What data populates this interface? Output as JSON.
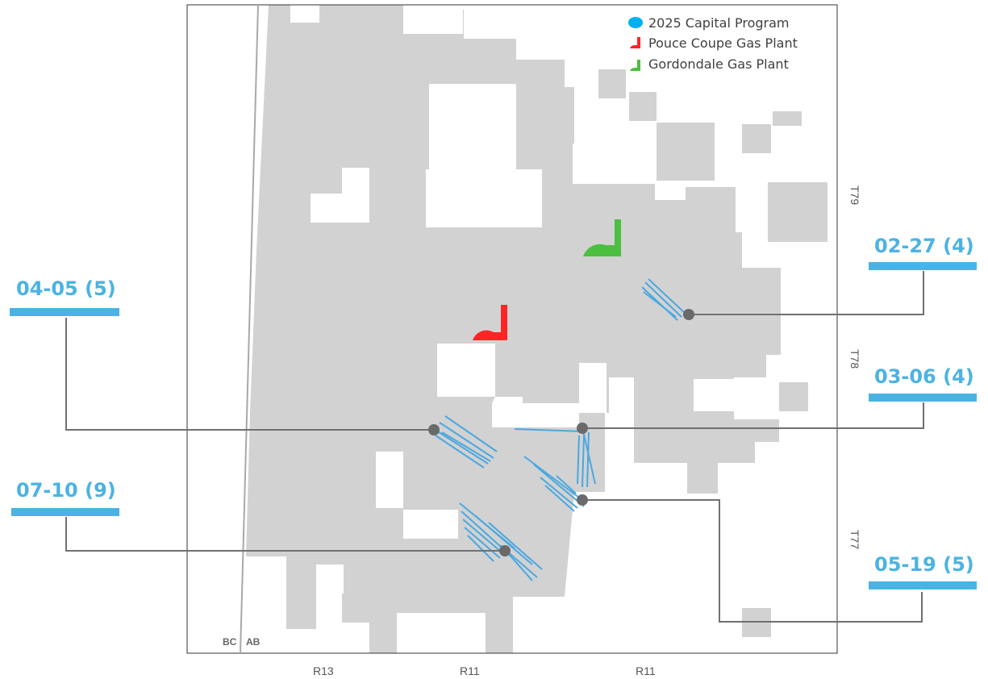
{
  "legend": {
    "items": [
      {
        "label": "2025 Capital Program",
        "icon": "blue-ellipse-icon",
        "color": "#00b0f0"
      },
      {
        "label": "Pouce Coupe Gas Plant",
        "icon": "red-plant-icon",
        "color": "#ff2525"
      },
      {
        "label": "Gordondale Gas Plant",
        "icon": "green-plant-icon",
        "color": "#4cbf40"
      }
    ]
  },
  "callouts": [
    {
      "label": "04-05 (5)"
    },
    {
      "label": "07-10 (9)"
    },
    {
      "label": "02-27 (4)"
    },
    {
      "label": "03-06 (4)"
    },
    {
      "label": "05-19 (5)"
    }
  ],
  "ranges": [
    "R13",
    "R11",
    "R11"
  ],
  "townships": [
    "T79",
    "T78",
    "T77"
  ],
  "border": {
    "left": "BC",
    "right": "AB"
  },
  "colors": {
    "land": "#d2d2d2",
    "callout": "#4bb3e3",
    "wells": "#4aa8e0",
    "leader": "#707070",
    "pouce_coupe": "#ff2525",
    "gordondale": "#4cbf40"
  }
}
